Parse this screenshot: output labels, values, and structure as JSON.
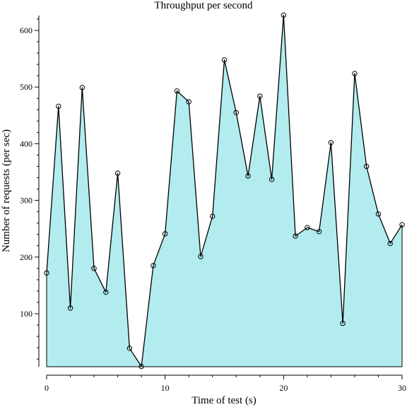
{
  "chart_data": {
    "type": "area",
    "title": "Throughput per second",
    "xlabel": "Time of test (s)",
    "ylabel": "Number of requests (per sec)",
    "xlim": [
      0,
      30
    ],
    "ylim": [
      0,
      640
    ],
    "x_ticks": [
      0,
      10,
      20,
      30
    ],
    "y_ticks": [
      100,
      200,
      300,
      400,
      500,
      600
    ],
    "grid": false,
    "fill_color": "#b2ecee",
    "line_color": "#000000",
    "x": [
      0,
      1,
      2,
      3,
      4,
      5,
      6,
      7,
      8,
      9,
      10,
      11,
      12,
      13,
      14,
      15,
      16,
      17,
      18,
      19,
      20,
      21,
      22,
      23,
      24,
      25,
      26,
      27,
      28,
      29,
      30
    ],
    "series": [
      {
        "values": [
          172,
          466,
          110,
          499,
          180,
          138,
          348,
          39,
          7,
          185,
          241,
          493,
          474,
          201,
          272,
          548,
          455,
          343,
          484,
          337,
          627,
          237,
          252,
          245,
          402,
          83,
          524,
          360,
          276,
          224,
          257
        ]
      }
    ]
  }
}
